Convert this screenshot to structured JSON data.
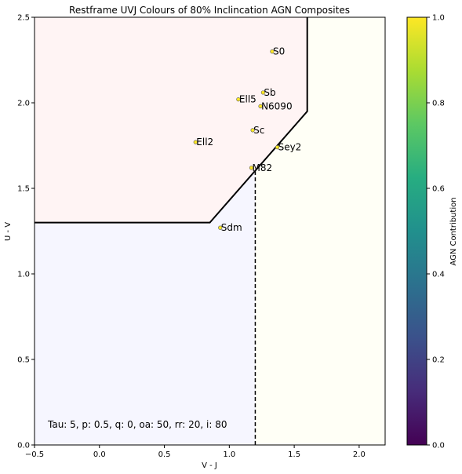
{
  "chart_data": {
    "type": "scatter",
    "title": "Restframe UVJ Colours of 80% Inclincation AGN Composites",
    "xlabel": "V - J",
    "ylabel": "U - V",
    "xlim": [
      -0.5,
      2.2
    ],
    "ylim": [
      0.0,
      2.5
    ],
    "xticks": [
      -0.5,
      0.0,
      0.5,
      1.0,
      1.5,
      2.0
    ],
    "xtick_labels": [
      "−0.5",
      "0.0",
      "0.5",
      "1.0",
      "1.5",
      "2.0"
    ],
    "yticks": [
      0.0,
      0.5,
      1.0,
      1.5,
      2.0,
      2.5
    ],
    "ytick_labels": [
      "0.0",
      "0.5",
      "1.0",
      "1.5",
      "2.0",
      "2.5"
    ],
    "grid": false,
    "points": [
      {
        "label": "S0",
        "x": 1.33,
        "y": 2.3,
        "agn": 1.0
      },
      {
        "label": "Sb",
        "x": 1.26,
        "y": 2.06,
        "agn": 1.0
      },
      {
        "label": "Ell5",
        "x": 1.07,
        "y": 2.02,
        "agn": 1.0
      },
      {
        "label": "N6090",
        "x": 1.24,
        "y": 1.98,
        "agn": 1.0
      },
      {
        "label": "Sc",
        "x": 1.18,
        "y": 1.84,
        "agn": 1.0
      },
      {
        "label": "Ell2",
        "x": 0.74,
        "y": 1.77,
        "agn": 1.0
      },
      {
        "label": "Sey2",
        "x": 1.37,
        "y": 1.74,
        "agn": 1.0
      },
      {
        "label": "M82",
        "x": 1.17,
        "y": 1.62,
        "agn": 1.0
      },
      {
        "label": "Sdm",
        "x": 0.93,
        "y": 1.27,
        "agn": 1.0
      }
    ],
    "quiescent_boundary": [
      [
        -0.5,
        1.3
      ],
      [
        0.85,
        1.3
      ],
      [
        1.6,
        1.95
      ],
      [
        1.6,
        2.5
      ]
    ],
    "divider": {
      "x": 1.2,
      "y_top": 1.6
    },
    "regions": {
      "quiescent_color": "#fff4f4",
      "dusty_color": "#fffff6",
      "star_forming_color": "#f6f6ff"
    },
    "annotation": "Tau: 5, p: 0.5, q: 0, oa: 50, rr: 20, i: 80",
    "colorbar": {
      "label": "AGN Contribution",
      "colormap": "viridis",
      "range": [
        0.0,
        1.0
      ],
      "ticks": [
        0.0,
        0.2,
        0.4,
        0.6,
        0.8,
        1.0
      ],
      "tick_labels": [
        "0.0",
        "0.2",
        "0.4",
        "0.6",
        "0.8",
        "1.0"
      ]
    }
  }
}
